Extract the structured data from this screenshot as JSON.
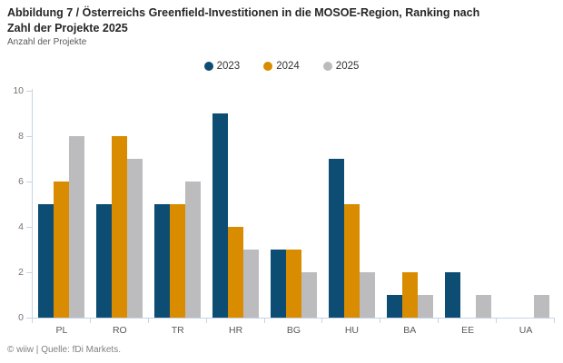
{
  "header": {
    "title": "Abbildung 7 / Österreichs Greenfield-Investitionen in die MOSOE-Region, Ranking nach Zahl der Projekte 2025",
    "subtitle": "Anzahl der Projekte"
  },
  "footer": {
    "text": "© wiiw | Quelle: fDi Markets."
  },
  "chart_data": {
    "type": "bar",
    "title": "Abbildung 7 / Österreichs Greenfield-Investitionen in die MOSOE-Region, Ranking nach Zahl der Projekte 2025",
    "subtitle": "Anzahl der Projekte",
    "categories": [
      "PL",
      "RO",
      "TR",
      "HR",
      "BG",
      "HU",
      "BA",
      "EE",
      "UA"
    ],
    "series": [
      {
        "name": "2023",
        "color": "#0d4c73",
        "values": [
          5,
          5,
          5,
          9,
          3,
          7,
          1,
          2,
          0
        ]
      },
      {
        "name": "2024",
        "color": "#d98c00",
        "values": [
          6,
          8,
          5,
          4,
          3,
          5,
          2,
          0,
          0
        ]
      },
      {
        "name": "2025",
        "color": "#bcbcbf",
        "values": [
          8,
          7,
          6,
          3,
          2,
          2,
          1,
          1,
          1
        ]
      }
    ],
    "xlabel": "",
    "ylabel": "Anzahl der Projekte",
    "ylim": [
      0,
      10
    ],
    "yticks": [
      0,
      2,
      4,
      6,
      8,
      10
    ],
    "grid": false,
    "legend_position": "top-center",
    "source": "© wiiw | Quelle: fDi Markets."
  },
  "colors": {
    "axis": "#c7d3e6",
    "tick_label": "#737373",
    "category_label": "#595959",
    "title": "#262626",
    "subtitle": "#595959",
    "footer": "#808080"
  }
}
